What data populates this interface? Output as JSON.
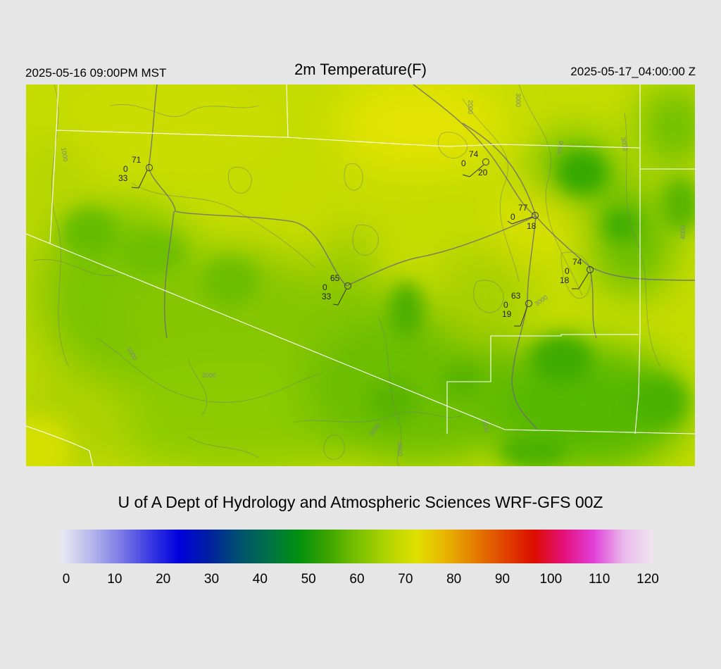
{
  "header": {
    "local_time": "2025-05-16 09:00PM MST",
    "title": "2m Temperature(F)",
    "utc_time": "2025-05-17_04:00:00 Z"
  },
  "map": {
    "background_color": "#c4dc00",
    "contour_labels": [
      "2000",
      "3000",
      "1000",
      "4000",
      "3000",
      "4000",
      "1000",
      "2000",
      "3000",
      "3000",
      "3000",
      "3000"
    ],
    "stations": [
      {
        "temp": "71",
        "wind": "0",
        "dewpoint": "33"
      },
      {
        "temp": "74",
        "wind": "0",
        "dewpoint": "20"
      },
      {
        "temp": "77",
        "wind": "0",
        "dewpoint": "18"
      },
      {
        "temp": "74",
        "wind": "0",
        "dewpoint": "18"
      },
      {
        "temp": "65",
        "wind": "0",
        "dewpoint": "33"
      },
      {
        "temp": "63",
        "wind": "0",
        "dewpoint": "19"
      }
    ]
  },
  "credit": "U of A Dept of Hydrology and Atmospheric Sciences WRF-GFS 00Z",
  "colorbar": {
    "min": 0,
    "max": 120,
    "ticks": [
      "0",
      "10",
      "20",
      "30",
      "40",
      "50",
      "60",
      "70",
      "80",
      "90",
      "100",
      "110",
      "120"
    ],
    "colors": [
      "#e8e8f4",
      "#b8b8ec",
      "#7c7ce6",
      "#3a3ae4",
      "#0000dc",
      "#0020a0",
      "#005070",
      "#007048",
      "#009010",
      "#3ca400",
      "#78c000",
      "#b0d400",
      "#e0e000",
      "#e8b400",
      "#e47c00",
      "#e04400",
      "#dc0c00",
      "#e4107c",
      "#e040d8",
      "#eab8ea",
      "#f0e4f0"
    ]
  }
}
